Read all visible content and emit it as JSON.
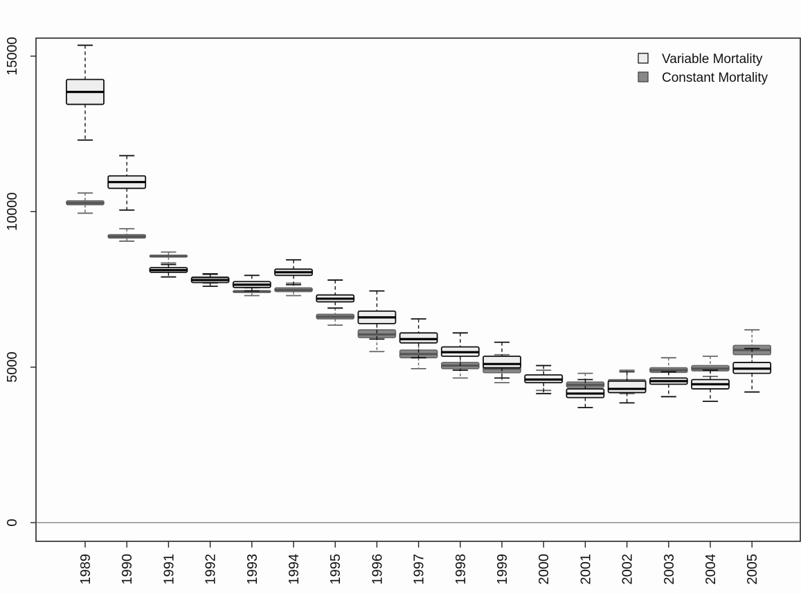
{
  "chart_data": {
    "type": "boxplot",
    "title": "",
    "xlabel": "",
    "ylabel": "",
    "ylim": [
      -650,
      15800
    ],
    "y_ticks": [
      0,
      5000,
      10000,
      15000
    ],
    "y_tick_labels": [
      "0",
      "5000",
      "10000",
      "15000"
    ],
    "reference_line": 0,
    "grid": false,
    "legend_position": "top-right",
    "categories": [
      "1989",
      "1990",
      "1991",
      "1992",
      "1993",
      "1994",
      "1995",
      "1996",
      "1997",
      "1998",
      "1999",
      "2000",
      "2001",
      "2002",
      "2003",
      "2004",
      "2005"
    ],
    "series": [
      {
        "name": "Variable Mortality",
        "fill": "#eeeeee",
        "stroke": "#111111",
        "boxes": [
          {
            "min": 12300,
            "q1": 13450,
            "median": 13850,
            "q3": 14250,
            "max": 15350
          },
          {
            "min": 10050,
            "q1": 10750,
            "median": 10950,
            "q3": 11150,
            "max": 11800
          },
          {
            "min": 7900,
            "q1": 8050,
            "median": 8120,
            "q3": 8200,
            "max": 8300
          },
          {
            "min": 7600,
            "q1": 7720,
            "median": 7800,
            "q3": 7880,
            "max": 8000
          },
          {
            "min": 7450,
            "q1": 7560,
            "median": 7650,
            "q3": 7750,
            "max": 7950
          },
          {
            "min": 7650,
            "q1": 7950,
            "median": 8050,
            "q3": 8150,
            "max": 8450
          },
          {
            "min": 6900,
            "q1": 7100,
            "median": 7200,
            "q3": 7320,
            "max": 7800
          },
          {
            "min": 5900,
            "q1": 6400,
            "median": 6600,
            "q3": 6800,
            "max": 7450
          },
          {
            "min": 5300,
            "q1": 5780,
            "median": 5900,
            "q3": 6100,
            "max": 6550
          },
          {
            "min": 4900,
            "q1": 5350,
            "median": 5480,
            "q3": 5650,
            "max": 6100
          },
          {
            "min": 4650,
            "q1": 4980,
            "median": 5100,
            "q3": 5350,
            "max": 5800
          },
          {
            "min": 4150,
            "q1": 4500,
            "median": 4600,
            "q3": 4750,
            "max": 5050
          },
          {
            "min": 3700,
            "q1": 4020,
            "median": 4150,
            "q3": 4300,
            "max": 4600
          },
          {
            "min": 3850,
            "q1": 4180,
            "median": 4300,
            "q3": 4550,
            "max": 4850
          },
          {
            "min": 4050,
            "q1": 4450,
            "median": 4550,
            "q3": 4650,
            "max": 4850
          },
          {
            "min": 3900,
            "q1": 4300,
            "median": 4450,
            "q3": 4600,
            "max": 4900
          },
          {
            "min": 4200,
            "q1": 4800,
            "median": 4950,
            "q3": 5150,
            "max": 5600
          }
        ]
      },
      {
        "name": "Constant Mortality",
        "fill": "#888888",
        "stroke": "#666666",
        "boxes": [
          {
            "min": 9950,
            "q1": 10220,
            "median": 10280,
            "q3": 10350,
            "max": 10600
          },
          {
            "min": 9050,
            "q1": 9150,
            "median": 9200,
            "q3": 9260,
            "max": 9450
          },
          {
            "min": 8350,
            "q1": 8540,
            "median": 8570,
            "q3": 8600,
            "max": 8700
          },
          {
            "min": 7700,
            "q1": 7800,
            "median": 7850,
            "q3": 7900,
            "max": 7980
          },
          {
            "min": 7300,
            "q1": 7400,
            "median": 7430,
            "q3": 7460,
            "max": 7550
          },
          {
            "min": 7300,
            "q1": 7430,
            "median": 7480,
            "q3": 7550,
            "max": 7700
          },
          {
            "min": 6350,
            "q1": 6550,
            "median": 6620,
            "q3": 6700,
            "max": 6900
          },
          {
            "min": 5500,
            "q1": 5950,
            "median": 6050,
            "q3": 6200,
            "max": 6500
          },
          {
            "min": 4950,
            "q1": 5300,
            "median": 5420,
            "q3": 5550,
            "max": 5850
          },
          {
            "min": 4650,
            "q1": 4950,
            "median": 5050,
            "q3": 5150,
            "max": 5400
          },
          {
            "min": 4500,
            "q1": 4820,
            "median": 4950,
            "q3": 5080,
            "max": 5400
          },
          {
            "min": 4250,
            "q1": 4500,
            "median": 4600,
            "q3": 4700,
            "max": 4900
          },
          {
            "min": 4050,
            "q1": 4350,
            "median": 4430,
            "q3": 4520,
            "max": 4800
          },
          {
            "min": 4150,
            "q1": 4350,
            "median": 4450,
            "q3": 4600,
            "max": 4900
          },
          {
            "min": 4600,
            "q1": 4830,
            "median": 4900,
            "q3": 4980,
            "max": 5300
          },
          {
            "min": 4700,
            "q1": 4880,
            "median": 4950,
            "q3": 5050,
            "max": 5350
          },
          {
            "min": 5150,
            "q1": 5400,
            "median": 5550,
            "q3": 5700,
            "max": 6200
          }
        ]
      }
    ]
  }
}
